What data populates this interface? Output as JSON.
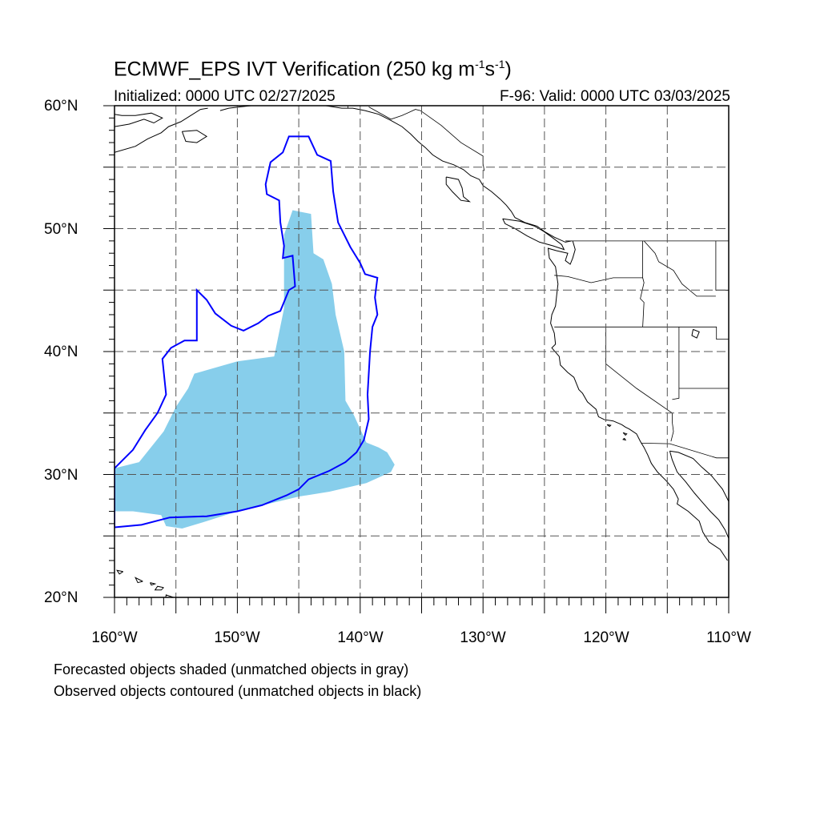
{
  "figure": {
    "title_main": "ECMWF_EPS IVT Verification (250 kg m",
    "title_sup1": "-1",
    "title_mid": "s",
    "title_sup2": "-1",
    "title_end": ")",
    "init_label": "Initialized: 0000 UTC 02/27/2025",
    "valid_label": "F-96: Valid: 0000 UTC 03/03/2025"
  },
  "map": {
    "lon_range": [
      -160,
      -110
    ],
    "lat_range": [
      20,
      60
    ],
    "grid_lines": "dashed",
    "lat_labels": [
      "60",
      "50",
      "40",
      "30",
      "20"
    ],
    "lon_labels": [
      "160",
      "150",
      "140",
      "130",
      "120",
      "110"
    ],
    "lat_suffix": "N",
    "lon_suffix": "W",
    "colors": {
      "forecast_shade": "#87ceeb",
      "observed_contour": "#0000ff",
      "coastline": "#000000",
      "grid": "#555555"
    },
    "forecast_object": [
      [
        -160,
        27
      ],
      [
        -160,
        30.5
      ],
      [
        -158,
        31
      ],
      [
        -156,
        33.5
      ],
      [
        -155,
        35.5
      ],
      [
        -154,
        37
      ],
      [
        -153.5,
        38.2
      ],
      [
        -150,
        39.2
      ],
      [
        -147,
        39.6
      ],
      [
        -146.2,
        43.5
      ],
      [
        -146.2,
        49.5
      ],
      [
        -145.5,
        51.5
      ],
      [
        -144,
        51.2
      ],
      [
        -143.8,
        48
      ],
      [
        -143,
        47.5
      ],
      [
        -142.3,
        45.5
      ],
      [
        -142,
        43
      ],
      [
        -141.3,
        40
      ],
      [
        -141.2,
        36
      ],
      [
        -140.5,
        34.8
      ],
      [
        -139.5,
        32.6
      ],
      [
        -138.5,
        32.2
      ],
      [
        -137.8,
        31.8
      ],
      [
        -137.2,
        30.8
      ],
      [
        -137.5,
        30.2
      ],
      [
        -139.5,
        29.3
      ],
      [
        -142.5,
        28.6
      ],
      [
        -145,
        28.2
      ],
      [
        -147.5,
        27.6
      ],
      [
        -150,
        27
      ],
      [
        -152.5,
        26.2
      ],
      [
        -154.5,
        25.6
      ],
      [
        -155.8,
        25.8
      ],
      [
        -156.2,
        26.7
      ],
      [
        -158.5,
        27
      ]
    ],
    "observed_object": [
      [
        -160,
        25.7
      ],
      [
        -157.8,
        25.9
      ],
      [
        -155.5,
        26.5
      ],
      [
        -152.5,
        26.6
      ],
      [
        -150,
        27.0
      ],
      [
        -148,
        27.5
      ],
      [
        -146,
        28.3
      ],
      [
        -145,
        28.8
      ],
      [
        -144.2,
        29.6
      ],
      [
        -142.5,
        30.3
      ],
      [
        -141.2,
        31.0
      ],
      [
        -140.3,
        31.8
      ],
      [
        -139.7,
        32.8
      ],
      [
        -139.3,
        34.5
      ],
      [
        -139.4,
        36.5
      ],
      [
        -139.2,
        40
      ],
      [
        -139,
        42
      ],
      [
        -138.6,
        43
      ],
      [
        -138.8,
        44.4
      ],
      [
        -138.6,
        46
      ],
      [
        -139.6,
        46.3
      ],
      [
        -140,
        47.2
      ],
      [
        -140.8,
        48.5
      ],
      [
        -141.8,
        50.5
      ],
      [
        -142.2,
        53
      ],
      [
        -142.4,
        55.5
      ],
      [
        -143.5,
        56.0
      ],
      [
        -144.2,
        57.5
      ],
      [
        -145.8,
        57.5
      ],
      [
        -146.3,
        56.2
      ],
      [
        -147.3,
        55.4
      ],
      [
        -147.7,
        53.6
      ],
      [
        -147.6,
        52.8
      ],
      [
        -146.6,
        52.3
      ],
      [
        -146.5,
        50.5
      ],
      [
        -146.2,
        48.6
      ],
      [
        -146.3,
        47.6
      ],
      [
        -145.5,
        47.8
      ],
      [
        -145.3,
        45.3
      ],
      [
        -145.8,
        45
      ],
      [
        -146.5,
        43.3
      ],
      [
        -147.5,
        42.9
      ],
      [
        -148.3,
        42.3
      ],
      [
        -149.5,
        41.7
      ],
      [
        -150.5,
        42.1
      ],
      [
        -151.8,
        43.1
      ],
      [
        -152.5,
        44.2
      ],
      [
        -153.3,
        45.0
      ],
      [
        -153.3,
        40.9
      ],
      [
        -154.3,
        40.9
      ],
      [
        -155.4,
        40.3
      ],
      [
        -156.1,
        39.4
      ],
      [
        -155.8,
        36.5
      ],
      [
        -156.5,
        35
      ],
      [
        -157.5,
        33.6
      ],
      [
        -158.5,
        32.0
      ],
      [
        -159.5,
        31.0
      ],
      [
        -160,
        30.5
      ]
    ],
    "coastlines": [
      [
        [
          -160,
          58.3
        ],
        [
          -158.8,
          58.5
        ],
        [
          -157.6,
          58.9
        ],
        [
          -156.8,
          58.6
        ],
        [
          -156.1,
          59.0
        ],
        [
          -157.0,
          59.4
        ],
        [
          -158.3,
          59.2
        ],
        [
          -159.4,
          59.2
        ],
        [
          -160,
          59.3
        ]
      ],
      [
        [
          -160,
          56.2
        ],
        [
          -158.3,
          56.7
        ],
        [
          -157.3,
          57.3
        ],
        [
          -156.2,
          57.8
        ],
        [
          -155.6,
          58.3
        ],
        [
          -154.6,
          58.7
        ],
        [
          -153.8,
          59.2
        ],
        [
          -153.0,
          59.7
        ],
        [
          -152.4,
          59.8
        ]
      ],
      [
        [
          -154.5,
          57.9
        ],
        [
          -153.3,
          58.0
        ],
        [
          -152.5,
          57.5
        ],
        [
          -153.3,
          57.0
        ],
        [
          -154.2,
          57.1
        ],
        [
          -154.5,
          57.9
        ]
      ],
      [
        [
          -151.4,
          59.6
        ],
        [
          -150.7,
          59.8
        ],
        [
          -149.8,
          59.9
        ],
        [
          -148.9,
          60.0
        ],
        [
          -148.2,
          60.0
        ]
      ],
      [
        [
          -147.0,
          60.0
        ],
        [
          -145.6,
          60.2
        ],
        [
          -144.3,
          60.0
        ],
        [
          -142.8,
          60.0
        ],
        [
          -141.5,
          59.8
        ],
        [
          -140.6,
          59.8
        ],
        [
          -139.6,
          59.6
        ],
        [
          -138.5,
          59.3
        ],
        [
          -137.5,
          58.8
        ],
        [
          -136.6,
          58.3
        ],
        [
          -135.9,
          57.7
        ],
        [
          -135.3,
          57.1
        ],
        [
          -134.7,
          56.6
        ],
        [
          -134.1,
          56.0
        ],
        [
          -133.3,
          55.5
        ],
        [
          -132.4,
          55.2
        ],
        [
          -131.6,
          54.8
        ],
        [
          -131.0,
          54.3
        ],
        [
          -130.3,
          54.0
        ],
        [
          -130.0,
          53.5
        ],
        [
          -129.3,
          53.0
        ],
        [
          -128.6,
          52.4
        ],
        [
          -128.1,
          51.9
        ],
        [
          -127.7,
          51.4
        ],
        [
          -127.4,
          50.9
        ],
        [
          -126.6,
          50.5
        ],
        [
          -125.6,
          50.2
        ],
        [
          -124.9,
          49.7
        ],
        [
          -124.2,
          49.3
        ],
        [
          -123.3,
          48.9
        ],
        [
          -122.8,
          49.0
        ]
      ],
      [
        [
          -133.0,
          54.2
        ],
        [
          -132.0,
          54.0
        ],
        [
          -131.7,
          53.3
        ],
        [
          -131.6,
          52.6
        ],
        [
          -131.1,
          52.2
        ],
        [
          -131.8,
          52.3
        ],
        [
          -132.5,
          53.0
        ],
        [
          -133.0,
          53.6
        ],
        [
          -133.0,
          54.2
        ]
      ],
      [
        [
          -128.4,
          50.8
        ],
        [
          -127.0,
          50.6
        ],
        [
          -125.8,
          50.2
        ],
        [
          -125.1,
          49.8
        ],
        [
          -124.4,
          49.3
        ],
        [
          -123.6,
          48.7
        ],
        [
          -123.4,
          48.3
        ],
        [
          -124.3,
          48.6
        ],
        [
          -125.4,
          48.9
        ],
        [
          -126.4,
          49.4
        ],
        [
          -127.4,
          50.0
        ],
        [
          -128.2,
          50.4
        ],
        [
          -128.4,
          50.8
        ]
      ],
      [
        [
          -122.7,
          49.0
        ],
        [
          -122.5,
          48.3
        ],
        [
          -122.7,
          47.6
        ],
        [
          -122.9,
          47.1
        ],
        [
          -123.3,
          47.4
        ],
        [
          -123.1,
          48.0
        ],
        [
          -124.0,
          48.2
        ],
        [
          -124.7,
          48.4
        ],
        [
          -124.6,
          47.6
        ],
        [
          -124.1,
          46.9
        ],
        [
          -124.0,
          46.2
        ],
        [
          -123.9,
          45.5
        ],
        [
          -124.0,
          44.6
        ],
        [
          -124.1,
          43.7
        ],
        [
          -124.4,
          43.0
        ],
        [
          -124.5,
          42.3
        ],
        [
          -124.2,
          41.5
        ],
        [
          -124.1,
          40.6
        ],
        [
          -124.4,
          40.3
        ],
        [
          -123.8,
          39.6
        ],
        [
          -123.7,
          38.9
        ],
        [
          -123.1,
          38.3
        ],
        [
          -122.6,
          37.9
        ],
        [
          -122.4,
          37.4
        ],
        [
          -122.2,
          36.9
        ],
        [
          -121.9,
          36.6
        ],
        [
          -121.5,
          35.9
        ],
        [
          -120.8,
          35.3
        ],
        [
          -120.6,
          34.7
        ],
        [
          -120.1,
          34.45
        ],
        [
          -119.4,
          34.35
        ],
        [
          -118.7,
          34.05
        ],
        [
          -118.4,
          33.85
        ],
        [
          -118.1,
          33.7
        ],
        [
          -117.5,
          33.3
        ],
        [
          -117.2,
          32.7
        ],
        [
          -116.9,
          32.2
        ],
        [
          -116.6,
          31.6
        ],
        [
          -116.3,
          30.9
        ],
        [
          -115.8,
          30.2
        ],
        [
          -115.1,
          29.5
        ],
        [
          -114.5,
          28.8
        ],
        [
          -114.1,
          28.0
        ],
        [
          -114.2,
          27.6
        ],
        [
          -113.3,
          27.0
        ],
        [
          -112.4,
          26.2
        ],
        [
          -112.1,
          25.3
        ],
        [
          -111.6,
          24.5
        ],
        [
          -110.7,
          23.9
        ],
        [
          -110.1,
          23.0
        ]
      ],
      [
        [
          -114.8,
          31.9
        ],
        [
          -114.6,
          31.2
        ],
        [
          -114.2,
          30.2
        ],
        [
          -113.5,
          29.4
        ],
        [
          -112.8,
          28.5
        ],
        [
          -112.2,
          27.8
        ],
        [
          -111.5,
          27.0
        ],
        [
          -110.8,
          26.3
        ],
        [
          -110.3,
          25.5
        ],
        [
          -110.0,
          24.8
        ]
      ],
      [
        [
          -110.0,
          27.8
        ],
        [
          -110.5,
          28.8
        ],
        [
          -111.4,
          29.9
        ],
        [
          -112.2,
          30.6
        ],
        [
          -112.9,
          31.3
        ],
        [
          -114.1,
          31.8
        ],
        [
          -114.8,
          31.9
        ]
      ],
      [
        [
          -119.9,
          34.05
        ],
        [
          -119.6,
          34.0
        ],
        [
          -119.7,
          33.9
        ],
        [
          -119.9,
          34.05
        ]
      ],
      [
        [
          -118.6,
          33.4
        ],
        [
          -118.3,
          33.3
        ],
        [
          -118.4,
          33.2
        ],
        [
          -118.6,
          33.4
        ]
      ],
      [
        [
          -118.5,
          32.95
        ],
        [
          -118.4,
          32.8
        ],
        [
          -118.6,
          32.85
        ],
        [
          -118.5,
          32.95
        ]
      ],
      [
        [
          -154.9,
          19.9
        ],
        [
          -155.8,
          20.2
        ],
        [
          -155.9,
          19.5
        ],
        [
          -155.3,
          18.9
        ],
        [
          -154.9,
          19.5
        ],
        [
          -154.9,
          19.9
        ]
      ],
      [
        [
          -156.0,
          20.8
        ],
        [
          -156.5,
          20.9
        ],
        [
          -156.7,
          20.6
        ],
        [
          -156.2,
          20.6
        ],
        [
          -156.0,
          20.8
        ]
      ],
      [
        [
          -157.1,
          21.2
        ],
        [
          -156.7,
          21.1
        ],
        [
          -157.0,
          21.0
        ],
        [
          -157.1,
          21.2
        ]
      ],
      [
        [
          -157.7,
          21.3
        ],
        [
          -158.3,
          21.6
        ],
        [
          -158.1,
          21.2
        ],
        [
          -157.7,
          21.3
        ]
      ],
      [
        [
          -159.3,
          22.1
        ],
        [
          -159.8,
          22.2
        ],
        [
          -159.6,
          21.9
        ],
        [
          -159.3,
          22.1
        ]
      ],
      [
        [
          -160,
          21.8
        ],
        [
          -160.2,
          21.9
        ]
      ],
      [
        [
          -112.9,
          41.8
        ],
        [
          -112.4,
          41.6
        ],
        [
          -112.6,
          41.1
        ],
        [
          -113.0,
          41.3
        ],
        [
          -112.9,
          41.8
        ]
      ]
    ],
    "borders": [
      [
        [
          -141,
          60
        ],
        [
          -141,
          59.8
        ]
      ],
      [
        [
          -139.3,
          59.9
        ],
        [
          -137.5,
          58.9
        ],
        [
          -136.6,
          59.2
        ],
        [
          -135.5,
          59.7
        ],
        [
          -135.1,
          59.6
        ],
        [
          -133.4,
          58.4
        ],
        [
          -131.8,
          57.0
        ],
        [
          -130.0,
          55.9
        ],
        [
          -130.0,
          55.3
        ],
        [
          -129.9,
          54.7
        ]
      ],
      [
        [
          -123.3,
          49.0
        ],
        [
          -110,
          49.0
        ]
      ],
      [
        [
          -117.0,
          49
        ],
        [
          -117.0,
          46.0
        ],
        [
          -116.9,
          45.6
        ],
        [
          -117.2,
          44.3
        ],
        [
          -116.9,
          44.0
        ],
        [
          -117.0,
          42.0
        ]
      ],
      [
        [
          -124.2,
          46.2
        ],
        [
          -123.1,
          46.1
        ],
        [
          -121.2,
          45.6
        ],
        [
          -119.4,
          46.0
        ],
        [
          -117.0,
          46.0
        ]
      ],
      [
        [
          -124.2,
          42.0
        ],
        [
          -111,
          42.0
        ],
        [
          -111,
          41.0
        ],
        [
          -110,
          41.0
        ]
      ],
      [
        [
          -111.05,
          49
        ],
        [
          -111.05,
          45.0
        ],
        [
          -110,
          45.0
        ]
      ],
      [
        [
          -116.9,
          49
        ],
        [
          -116.0,
          48.0
        ],
        [
          -115.7,
          47.3
        ],
        [
          -114.5,
          46.6
        ],
        [
          -113.8,
          45.5
        ],
        [
          -112.6,
          44.5
        ],
        [
          -111.05,
          44.5
        ]
      ],
      [
        [
          -120.0,
          42.0
        ],
        [
          -120.0,
          39.0
        ],
        [
          -117.5,
          37.0
        ],
        [
          -114.6,
          35.0
        ],
        [
          -114.6,
          34.3
        ],
        [
          -114.5,
          33.5
        ],
        [
          -114.7,
          32.7
        ]
      ],
      [
        [
          -114.05,
          42
        ],
        [
          -114.05,
          37.0
        ],
        [
          -110,
          37.0
        ]
      ],
      [
        [
          -114.05,
          37.0
        ],
        [
          -114.05,
          36.2
        ],
        [
          -114.6,
          36.1
        ]
      ],
      [
        [
          -117.1,
          32.55
        ],
        [
          -114.8,
          32.5
        ],
        [
          -111.0,
          31.35
        ],
        [
          -110,
          31.35
        ]
      ]
    ]
  },
  "legend": {
    "line1": "Forecasted objects shaded (unmatched objects in gray)",
    "line2": "Observed objects contoured (unmatched objects in black)"
  }
}
